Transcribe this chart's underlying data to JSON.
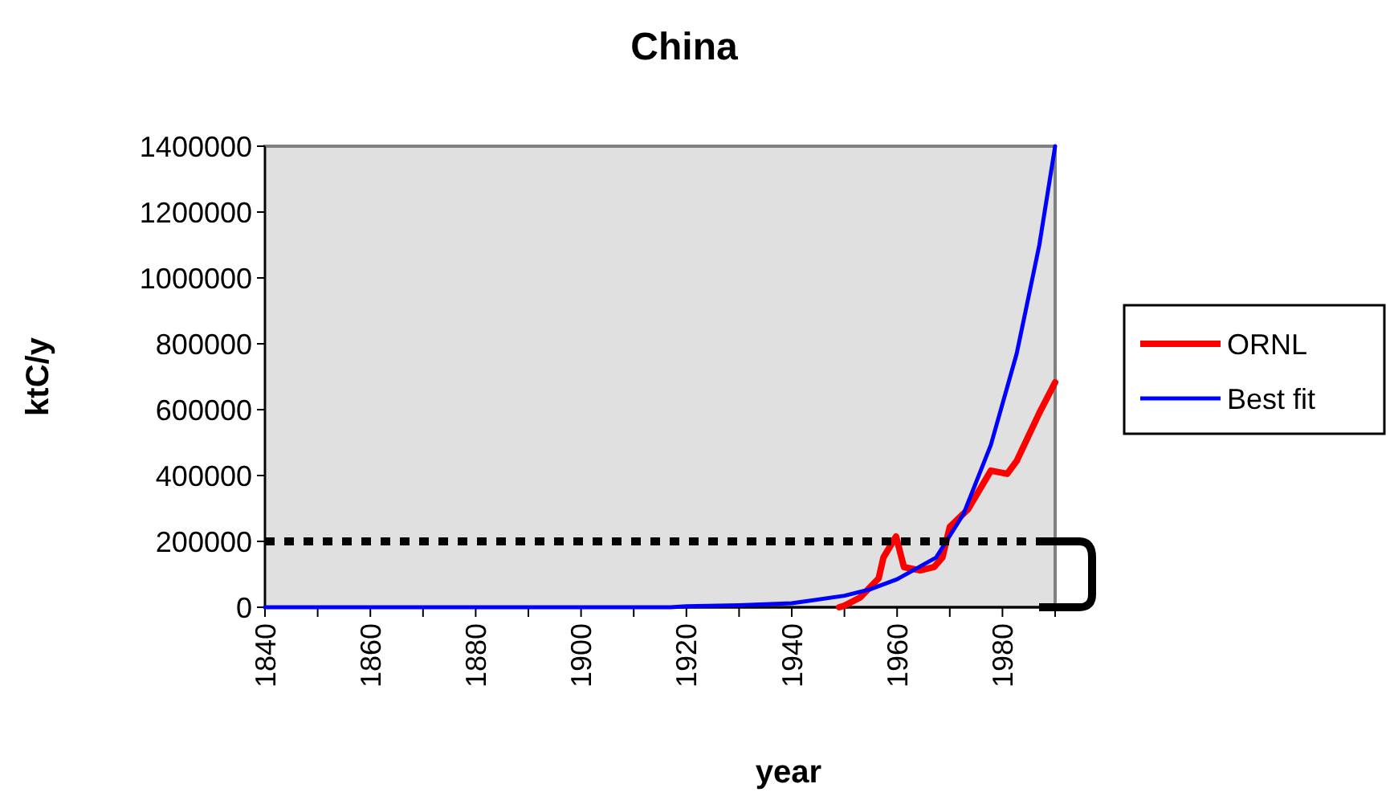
{
  "chart_data": {
    "type": "line",
    "title": "China",
    "xlabel": "year",
    "ylabel": "ktC/y",
    "xlim": [
      1840,
      1990
    ],
    "xticks": [
      1840,
      {
        "value": 1850,
        "label": null
      },
      1860,
      {
        "value": 1870,
        "label": null
      },
      1880,
      {
        "value": 1890,
        "label": null
      },
      1900,
      {
        "value": 1910,
        "label": null
      },
      1920,
      {
        "value": 1930,
        "label": null
      },
      1940,
      {
        "value": 1950,
        "label": null
      },
      1960,
      {
        "value": 1970,
        "label": null
      },
      1980,
      {
        "value": 1990,
        "label": null
      }
    ],
    "ylim": [
      0,
      1400000
    ],
    "yticks": [
      0,
      200000,
      400000,
      600000,
      800000,
      1000000,
      1200000,
      1400000
    ],
    "grid": false,
    "legend": "right",
    "series": [
      {
        "name": "ORNL",
        "color": "#ff0000",
        "x": [
          1949,
          1950,
          1953,
          1956.5,
          1957.4,
          1959.8,
          1961.3,
          1964.4,
          1967,
          1968.6,
          1970,
          1973.5,
          1977.8,
          1980.9,
          1982.7,
          1987,
          1990
        ],
        "values": [
          0,
          5000,
          30000,
          88000,
          151000,
          215000,
          122000,
          112000,
          122000,
          151000,
          244000,
          298000,
          415000,
          405000,
          444000,
          590000,
          683000
        ]
      },
      {
        "name": "Best fit",
        "color": "#0000ff",
        "x": [
          1840,
          1917,
          1920,
          1930,
          1940,
          1950,
          1955,
          1960,
          1967.4,
          1972.6,
          1977.8,
          1982.7,
          1987,
          1990
        ],
        "values": [
          0,
          0,
          3000,
          6000,
          12000,
          35000,
          55000,
          85000,
          151000,
          283000,
          493000,
          770000,
          1100000,
          1400000
        ]
      }
    ],
    "ref_lines": [
      {
        "axis": "y",
        "value": 200000,
        "color": "#000000",
        "line_style": "dotted"
      }
    ]
  }
}
